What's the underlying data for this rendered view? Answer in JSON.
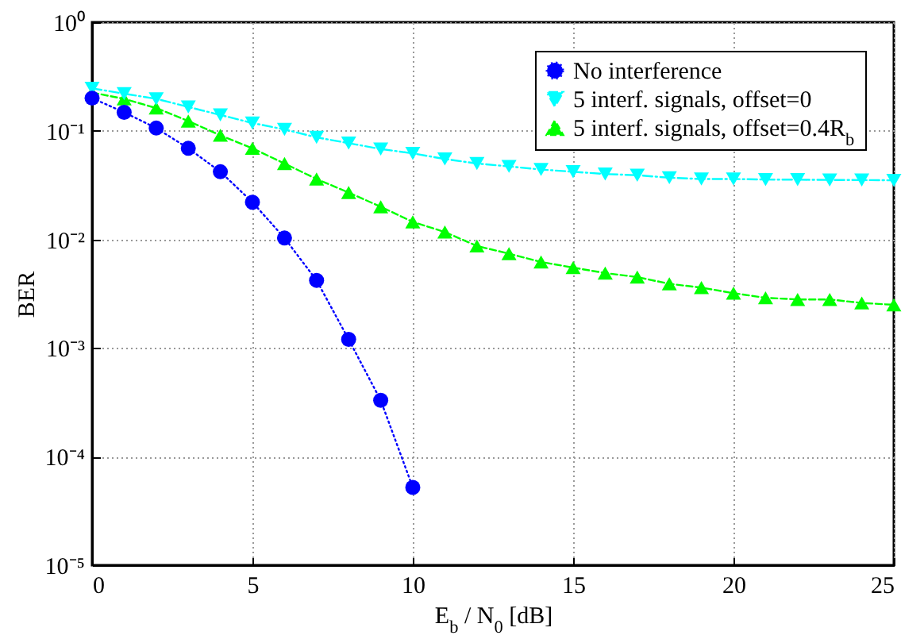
{
  "chart_data": {
    "type": "line",
    "x": [
      0,
      1,
      2,
      3,
      4,
      5,
      6,
      7,
      8,
      9,
      10,
      11,
      12,
      13,
      14,
      15,
      16,
      17,
      18,
      19,
      20,
      21,
      22,
      23,
      24,
      25
    ],
    "xlabel": "E$_{b}$ / N$_{0}$ [dB]",
    "ylabel": "BER",
    "xlim": [
      0,
      25
    ],
    "xticks": [
      0,
      5,
      10,
      15,
      20,
      25
    ],
    "ylim": [
      1e-05,
      1
    ],
    "log": true,
    "yticks": [
      {
        "value": 1,
        "label": "10⁰"
      },
      {
        "value": 0.1,
        "label": "10⁻¹"
      },
      {
        "value": 0.01,
        "label": "10⁻²"
      },
      {
        "value": 0.001,
        "label": "10⁻³"
      },
      {
        "value": 0.0001,
        "label": "10⁻⁴"
      },
      {
        "value": 1e-05,
        "label": "10⁻⁵"
      }
    ],
    "grid": true,
    "legend": "top right",
    "series": [
      {
        "name": "No interference",
        "color": "#0000ff",
        "marker": "circle",
        "line_style": "dotted",
        "x": [
          0,
          1,
          2,
          3,
          4,
          5,
          6,
          7,
          8,
          9,
          10
        ],
        "values": [
          0.2,
          0.148,
          0.106,
          0.069,
          0.042,
          0.022,
          0.0103,
          0.0042,
          0.0012,
          0.00033,
          5.2e-05
        ]
      },
      {
        "name": "5 interf. signals, offset=0",
        "color": "#00ffff",
        "marker": "triangle-down",
        "line_style": "dashdot",
        "values": [
          0.246,
          0.22,
          0.197,
          0.166,
          0.14,
          0.118,
          0.103,
          0.087,
          0.077,
          0.068,
          0.062,
          0.055,
          0.05,
          0.047,
          0.044,
          0.042,
          0.04,
          0.039,
          0.037,
          0.036,
          0.036,
          0.0356,
          0.0355,
          0.0353,
          0.0352,
          0.035
        ]
      },
      {
        "name": "5 interf. signals, offset=0.4R$_{b}$",
        "color": "#00ff00",
        "marker": "triangle",
        "line_style": "dashed",
        "values": [
          0.225,
          0.197,
          0.162,
          0.123,
          0.091,
          0.069,
          0.05,
          0.036,
          0.027,
          0.02,
          0.0145,
          0.0117,
          0.0087,
          0.0074,
          0.0062,
          0.0055,
          0.0049,
          0.0045,
          0.0039,
          0.0036,
          0.0032,
          0.0029,
          0.0028,
          0.0028,
          0.0026,
          0.0025
        ]
      }
    ]
  }
}
